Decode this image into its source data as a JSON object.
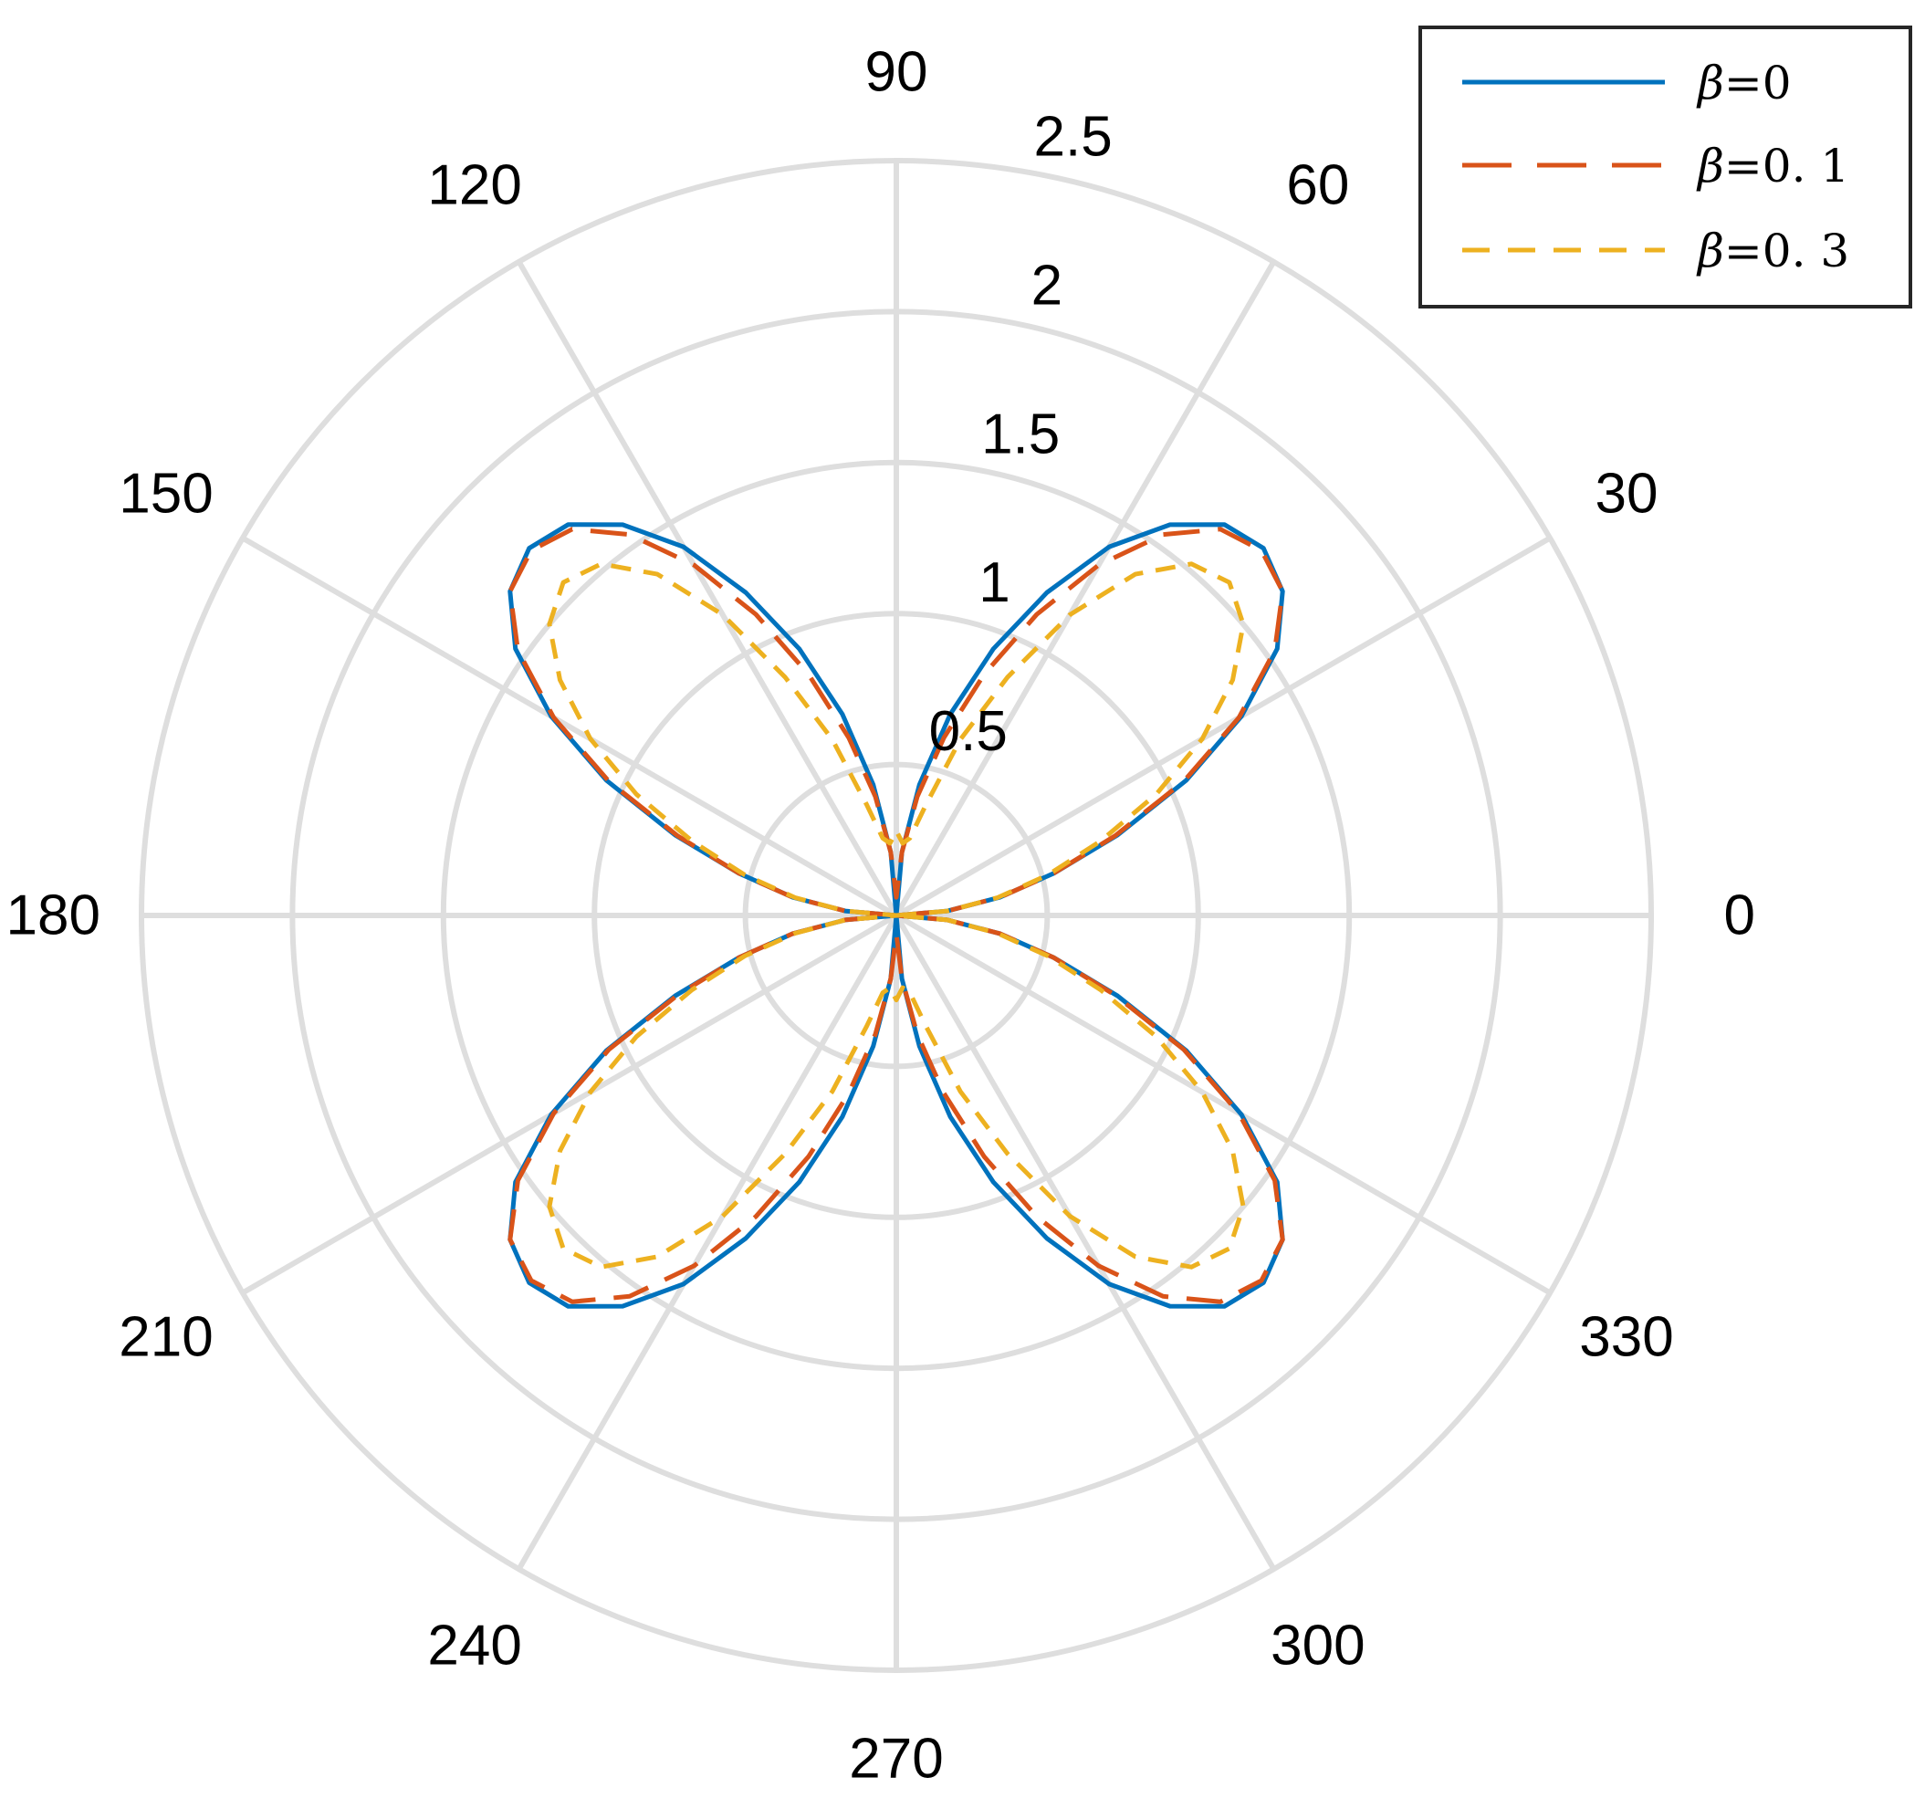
{
  "chart_data": {
    "type": "polar-line",
    "title": "",
    "theta_unit": "degrees",
    "theta_ticks": [
      0,
      30,
      60,
      90,
      120,
      150,
      180,
      210,
      240,
      270,
      300,
      330
    ],
    "theta_tick_labels": [
      "0",
      "30",
      "60",
      "90",
      "120",
      "150",
      "180",
      "210",
      "240",
      "270",
      "300",
      "330"
    ],
    "r_ticks": [
      0.5,
      1,
      1.5,
      2,
      2.5
    ],
    "r_tick_labels": [
      "0.5",
      "1",
      "1.5",
      "2",
      "2.5"
    ],
    "rlim": [
      0,
      2.5
    ],
    "r_label_angle_deg": 80,
    "grid": true,
    "grid_color": "#dedede",
    "legend_position": "top-right",
    "series": [
      {
        "name_symbol": "β",
        "name_value": "=0",
        "color": "#0072BD",
        "linestyle": "solid",
        "theta": [
          0,
          5,
          10,
          15,
          20,
          25,
          30,
          35,
          40,
          45,
          50,
          55,
          60,
          65,
          70,
          75,
          80,
          85,
          90
        ],
        "r": [
          0,
          0.17,
          0.35,
          0.54,
          0.78,
          1.06,
          1.32,
          1.54,
          1.67,
          1.72,
          1.69,
          1.58,
          1.41,
          1.18,
          0.94,
          0.69,
          0.44,
          0.21,
          0
        ],
        "symmetry": "mirror-x-and-y"
      },
      {
        "name_symbol": "β",
        "name_value": "=0. 1",
        "color": "#D95319",
        "linestyle": "long-dash",
        "theta": [
          0,
          5,
          10,
          15,
          20,
          25,
          30,
          35,
          40,
          45,
          50,
          55,
          60,
          65,
          70,
          75,
          80,
          85,
          90
        ],
        "r": [
          0,
          0.17,
          0.35,
          0.54,
          0.77,
          1.05,
          1.31,
          1.53,
          1.67,
          1.71,
          1.67,
          1.54,
          1.34,
          1.1,
          0.85,
          0.61,
          0.4,
          0.21,
          0.06
        ],
        "symmetry": "mirror-x-and-y"
      },
      {
        "name_symbol": "β",
        "name_value": "=0. 3",
        "color": "#EDB120",
        "linestyle": "short-dash",
        "theta": [
          0,
          5,
          10,
          15,
          20,
          25,
          30,
          35,
          40,
          45,
          50,
          55,
          60,
          65,
          70,
          75,
          80,
          85,
          90
        ],
        "r": [
          0,
          0.17,
          0.34,
          0.52,
          0.72,
          0.95,
          1.17,
          1.36,
          1.5,
          1.56,
          1.52,
          1.38,
          1.15,
          0.87,
          0.62,
          0.38,
          0.26,
          0.24,
          0.28
        ],
        "symmetry": "mirror-x-and-y"
      }
    ]
  }
}
